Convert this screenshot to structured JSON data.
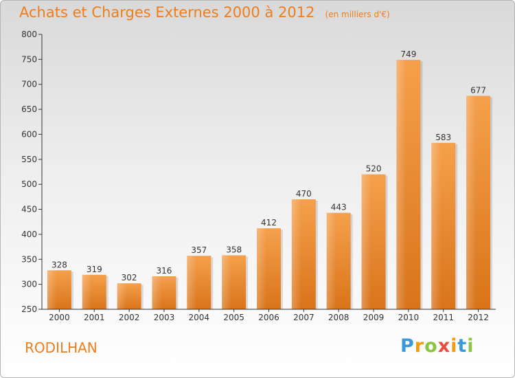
{
  "chart_data": {
    "type": "bar",
    "title": "Achats et Charges Externes 2000 à 2012",
    "subtitle": "(en milliers d'€)",
    "categories": [
      "2000",
      "2001",
      "2002",
      "2003",
      "2004",
      "2005",
      "2006",
      "2007",
      "2008",
      "2009",
      "2010",
      "2011",
      "2012"
    ],
    "values": [
      328,
      319,
      302,
      316,
      357,
      358,
      412,
      470,
      443,
      520,
      749,
      583,
      677
    ],
    "ylim": [
      250,
      800
    ],
    "yticks": [
      250,
      300,
      350,
      400,
      450,
      500,
      550,
      600,
      650,
      700,
      750,
      800
    ],
    "xlabel": "",
    "ylabel": "",
    "grid": false,
    "bar_color": "#f08c2c"
  },
  "location": "RODILHAN",
  "logo": {
    "letters": [
      "P",
      "r",
      "o",
      "x",
      "i",
      "t",
      "i"
    ],
    "colors": [
      "#3a9ad9",
      "#f39c12",
      "#8cc63f",
      "#e74c3c",
      "#f39c12",
      "#3a9ad9",
      "#8cc63f"
    ]
  }
}
